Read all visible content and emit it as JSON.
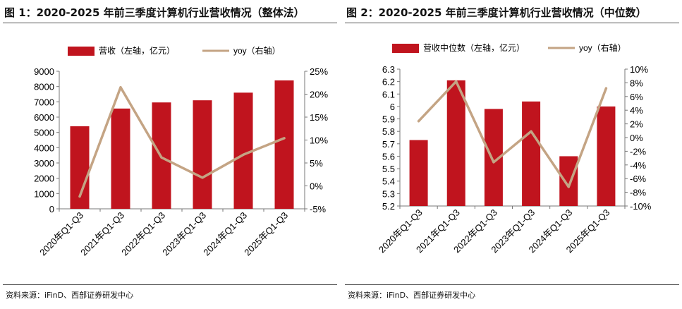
{
  "charts": [
    {
      "title": "图 1：2020-2025 年前三季度计算机行业营收情况（整体法）",
      "source": "资料来源：iFinD、西部证券研发中心"
    },
    {
      "title": "图 2：2020-2025 年前三季度计算机行业营收情况（中位数）",
      "source": "资料来源：iFinD、西部证券研发中心"
    }
  ],
  "colors": {
    "bar": "#C0141E",
    "line": "#C4A484",
    "axis": "#777777"
  },
  "chart_data": [
    {
      "type": "bar",
      "title": "2020-2025 年前三季度计算机行业营收情况（整体法）",
      "categories": [
        "2020年Q1-Q3",
        "2021年Q1-Q3",
        "2022年Q1-Q3",
        "2023年Q1-Q3",
        "2024年Q1-Q3",
        "2025年Q1-Q3"
      ],
      "series": [
        {
          "name": "营收（左轴，亿元）",
          "type": "bar",
          "axis": "left",
          "values": [
            5400,
            6560,
            6960,
            7100,
            7600,
            8400
          ]
        },
        {
          "name": "yoy（右轴）",
          "type": "line",
          "axis": "right",
          "values": [
            -2.3,
            21.5,
            6.2,
            1.8,
            6.8,
            10.4
          ]
        }
      ],
      "left_axis": {
        "min": 0,
        "max": 9000,
        "ticks": [
          0,
          1000,
          2000,
          3000,
          4000,
          5000,
          6000,
          7000,
          8000,
          9000
        ],
        "tick_labels": [
          "0",
          "1000",
          "2000",
          "3000",
          "4000",
          "5000",
          "6000",
          "7000",
          "8000",
          "9000"
        ]
      },
      "right_axis": {
        "min": -5,
        "max": 25,
        "ticks": [
          -5,
          0,
          5,
          10,
          15,
          20,
          25
        ],
        "tick_labels": [
          "-5%",
          "0%",
          "5%",
          "10%",
          "15%",
          "20%",
          "25%"
        ]
      },
      "legend": "top"
    },
    {
      "type": "bar",
      "title": "2020-2025 年前三季度计算机行业营收情况（中位数）",
      "categories": [
        "2020年Q1-Q3",
        "2021年Q1-Q3",
        "2022年Q1-Q3",
        "2023年Q1-Q3",
        "2024年Q1-Q3",
        "2025年Q1-Q3"
      ],
      "series": [
        {
          "name": "营收中位数（左轴，亿元）",
          "type": "bar",
          "axis": "left",
          "values": [
            5.73,
            6.21,
            5.98,
            6.04,
            5.6,
            6.0
          ]
        },
        {
          "name": "yoy（右轴）",
          "type": "line",
          "axis": "right",
          "values": [
            2.4,
            8.2,
            -3.6,
            0.9,
            -7.2,
            7.2
          ]
        }
      ],
      "left_axis": {
        "min": 5.2,
        "max": 6.3,
        "ticks": [
          5.2,
          5.3,
          5.4,
          5.5,
          5.6,
          5.7,
          5.8,
          5.9,
          6.0,
          6.1,
          6.2,
          6.3
        ],
        "tick_labels": [
          "5.2",
          "5.3",
          "5.4",
          "5.5",
          "5.6",
          "5.7",
          "5.8",
          "5.9",
          "6",
          "6.1",
          "6.2",
          "6.3"
        ]
      },
      "right_axis": {
        "min": -10,
        "max": 10,
        "ticks": [
          -10,
          -8,
          -6,
          -4,
          -2,
          0,
          2,
          4,
          6,
          8,
          10
        ],
        "tick_labels": [
          "-10%",
          "-8%",
          "-6%",
          "-4%",
          "-2%",
          "0%",
          "2%",
          "4%",
          "6%",
          "8%",
          "10%"
        ]
      },
      "legend": "top"
    }
  ]
}
